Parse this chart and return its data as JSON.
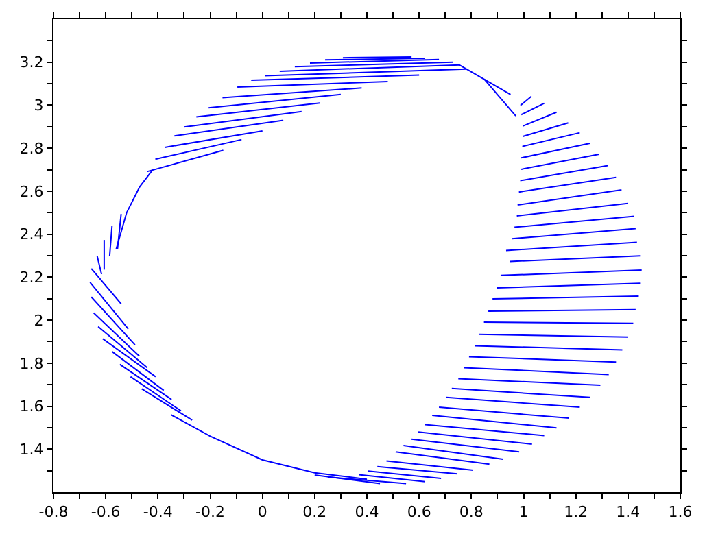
{
  "chart_data": {
    "type": "line",
    "xlim": [
      -0.8,
      1.6
    ],
    "ylim": [
      1.2,
      3.4
    ],
    "xticks": [
      -0.8,
      {
        "value": -0.7,
        "label": null
      },
      -0.6,
      {
        "value": -0.5,
        "label": null
      },
      -0.4,
      {
        "value": -0.3,
        "label": null
      },
      -0.2,
      {
        "value": -0.1,
        "label": null
      },
      0,
      {
        "value": 0.1,
        "label": null
      },
      0.2,
      {
        "value": 0.3,
        "label": null
      },
      0.4,
      {
        "value": 0.5,
        "label": null
      },
      0.6,
      {
        "value": 0.7,
        "label": null
      },
      0.8,
      {
        "value": 0.9,
        "label": null
      },
      1,
      {
        "value": 1.1,
        "label": null
      },
      1.2,
      {
        "value": 1.3,
        "label": null
      },
      1.4,
      {
        "value": 1.5,
        "label": null
      },
      1.6
    ],
    "yticks": [
      {
        "value": 1.3,
        "label": null
      },
      1.4,
      {
        "value": 1.5,
        "label": null
      },
      1.6,
      {
        "value": 1.7,
        "label": null
      },
      1.8,
      {
        "value": 1.9,
        "label": null
      },
      2,
      {
        "value": 2.1,
        "label": null
      },
      2.2,
      {
        "value": 2.3,
        "label": null
      },
      2.4,
      {
        "value": 2.5,
        "label": null
      },
      2.6,
      {
        "value": 2.7,
        "label": null
      },
      2.8,
      {
        "value": 2.9,
        "label": null
      },
      3,
      {
        "value": 3.1,
        "label": null
      },
      3.2,
      {
        "value": 3.3,
        "label": null
      }
    ],
    "marker": "none",
    "line_style": "solid",
    "series": [
      {
        "color": "#0000ff",
        "x": [
          0.308,
          0.571,
          null,
          0.24,
          0.623,
          null,
          0.182,
          0.676,
          null,
          0.124,
          0.729,
          null,
          0.066,
          0.755,
          null,
          0.009,
          0.781,
          null,
          -0.043,
          0.6,
          null,
          -0.096,
          0.48,
          null,
          -0.153,
          0.38,
          null,
          -0.206,
          0.3,
          null,
          -0.253,
          0.22,
          null,
          -0.3,
          0.15,
          null,
          -0.337,
          0.08,
          null,
          -0.374,
          0.0,
          null,
          -0.41,
          -0.08,
          null,
          -0.442,
          -0.15,
          null,
          0.75,
          0.95,
          null,
          0.85,
          0.97,
          null,
          0.988,
          1.03,
          null,
          0.991,
          1.079,
          null,
          0.997,
          1.126,
          null,
          0.997,
          1.171,
          null,
          0.995,
          1.215,
          null,
          0.991,
          1.254,
          null,
          0.991,
          1.289,
          null,
          0.987,
          1.323,
          null,
          0.982,
          1.354,
          null,
          0.977,
          1.375,
          null,
          0.974,
          1.399,
          null,
          0.965,
          1.424,
          null,
          0.956,
          1.429,
          null,
          0.933,
          1.434,
          null,
          0.947,
          1.446,
          null,
          0.912,
          1.452,
          null,
          0.898,
          1.446,
          null,
          0.881,
          1.441,
          null,
          0.865,
          1.429,
          null,
          0.848,
          1.42,
          null,
          0.828,
          1.399,
          null,
          0.813,
          1.378,
          null,
          0.791,
          1.354,
          null,
          0.771,
          1.326,
          null,
          0.75,
          1.294,
          null,
          0.725,
          1.254,
          null,
          0.704,
          1.215,
          null,
          0.676,
          1.174,
          null,
          0.65,
          1.126,
          null,
          0.623,
          1.079,
          null,
          0.597,
          1.032,
          null,
          0.571,
          0.983,
          null,
          0.54,
          0.921,
          null,
          0.51,
          0.869,
          null,
          0.475,
          0.807,
          null,
          0.44,
          0.746,
          null,
          0.405,
          0.684,
          null,
          0.369,
          0.623,
          null,
          0.25,
          0.55,
          null,
          0.2,
          0.45,
          null,
          -0.655,
          -0.541,
          null,
          -0.66,
          -0.514,
          null,
          -0.655,
          -0.488,
          null,
          -0.646,
          -0.471,
          null,
          -0.629,
          -0.441,
          null,
          -0.611,
          -0.409,
          null,
          -0.576,
          -0.378,
          null,
          -0.546,
          -0.348,
          null,
          -0.505,
          -0.312,
          null,
          -0.462,
          -0.269,
          null,
          -0.541,
          -0.555,
          null,
          -0.576,
          -0.585,
          null,
          -0.606,
          -0.606,
          null,
          -0.633,
          -0.616,
          null,
          -0.35,
          -0.2,
          0,
          0.2,
          0.4,
          null,
          -0.56,
          -0.52,
          -0.47,
          -0.42
        ],
        "values": [
          3.221,
          3.225,
          null,
          3.211,
          3.218,
          null,
          3.196,
          3.213,
          null,
          3.179,
          3.2,
          null,
          3.158,
          3.187,
          null,
          3.137,
          3.168,
          null,
          3.116,
          3.14,
          null,
          3.084,
          3.11,
          null,
          3.035,
          3.08,
          null,
          2.988,
          3.05,
          null,
          2.946,
          3.01,
          null,
          2.899,
          2.97,
          null,
          2.857,
          2.93,
          null,
          2.804,
          2.88,
          null,
          2.749,
          2.84,
          null,
          2.691,
          2.79,
          null,
          3.19,
          3.05,
          null,
          3.12,
          2.95,
          null,
          2.999,
          3.041,
          null,
          2.956,
          3.009,
          null,
          2.903,
          2.967,
          null,
          2.855,
          2.918,
          null,
          2.808,
          2.872,
          null,
          2.755,
          2.823,
          null,
          2.702,
          2.772,
          null,
          2.649,
          2.719,
          null,
          2.596,
          2.664,
          null,
          2.536,
          2.606,
          null,
          2.485,
          2.543,
          null,
          2.432,
          2.483,
          null,
          2.379,
          2.426,
          null,
          2.324,
          2.362,
          null,
          2.273,
          2.299,
          null,
          2.208,
          2.233,
          null,
          2.15,
          2.172,
          null,
          2.099,
          2.112,
          null,
          2.042,
          2.049,
          null,
          1.991,
          1.985,
          null,
          1.934,
          1.921,
          null,
          1.881,
          1.862,
          null,
          1.83,
          1.805,
          null,
          1.779,
          1.747,
          null,
          1.728,
          1.697,
          null,
          1.682,
          1.641,
          null,
          1.641,
          1.595,
          null,
          1.595,
          1.544,
          null,
          1.557,
          1.499,
          null,
          1.514,
          1.463,
          null,
          1.48,
          1.423,
          null,
          1.446,
          1.387,
          null,
          1.417,
          1.353,
          null,
          1.387,
          1.33,
          null,
          1.345,
          1.302,
          null,
          1.319,
          1.285,
          null,
          1.298,
          1.264,
          null,
          1.281,
          1.249,
          null,
          1.27,
          1.24,
          null,
          1.28,
          1.24,
          null,
          2.24,
          2.076,
          null,
          2.176,
          1.959,
          null,
          2.108,
          1.885,
          null,
          2.034,
          1.832,
          null,
          1.97,
          1.779,
          null,
          1.913,
          1.737,
          null,
          1.854,
          1.673,
          null,
          1.794,
          1.631,
          null,
          1.737,
          1.578,
          null,
          1.68,
          1.535,
          null,
          2.494,
          2.331,
          null,
          2.437,
          2.299,
          null,
          2.373,
          2.235,
          null,
          2.299,
          2.214,
          null,
          1.56,
          1.46,
          1.35,
          1.29,
          1.26,
          null,
          2.33,
          2.5,
          2.62,
          2.7
        ]
      }
    ]
  }
}
